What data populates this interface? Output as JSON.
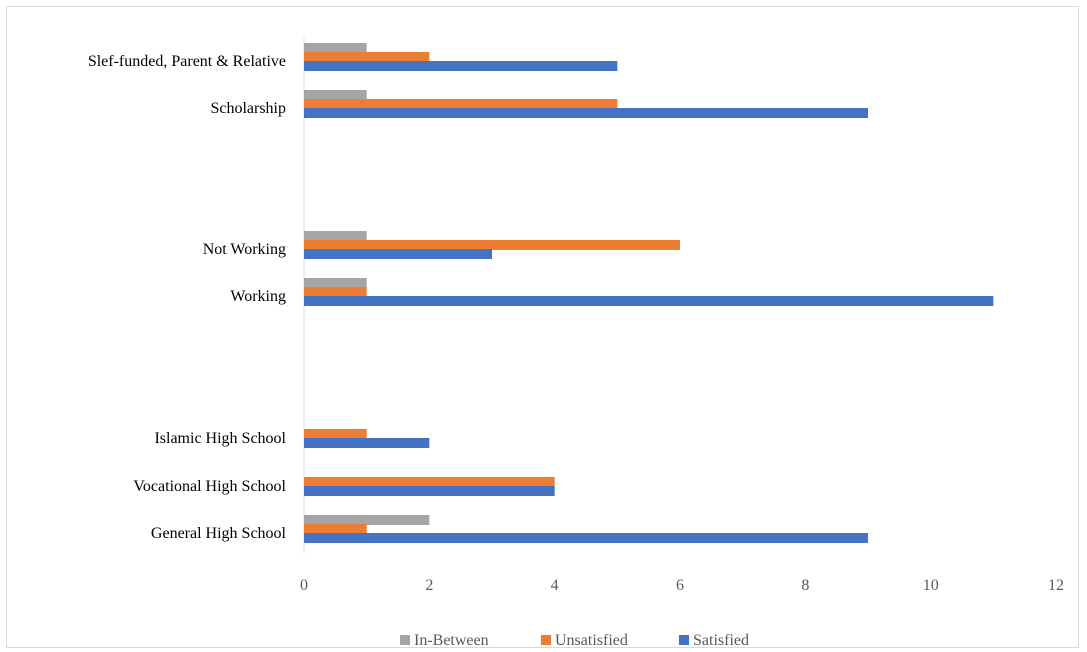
{
  "chart_data": {
    "type": "bar",
    "orientation": "horizontal",
    "title": "",
    "xlabel": "",
    "ylabel": "",
    "xlim": [
      0,
      12
    ],
    "xticks": [
      0,
      2,
      4,
      6,
      8,
      10,
      12
    ],
    "grid": false,
    "legend_position": "bottom",
    "categories": [
      "Slef-funded, Parent & Relative",
      "Scholarship",
      "Not Working",
      "Working",
      "Islamic High School ",
      "Vocational High School",
      "General High School"
    ],
    "series": [
      {
        "name": "In-Between",
        "color": "#a5a5a5",
        "values": [
          1,
          1,
          1,
          1,
          0,
          0,
          2
        ]
      },
      {
        "name": "Unsatisfied",
        "color": "#ed7d31",
        "values": [
          2,
          5,
          6,
          1,
          1,
          4,
          1
        ]
      },
      {
        "name": "Satisfied",
        "color": "#4472c4",
        "values": [
          5,
          9,
          3,
          11,
          2,
          4,
          9
        ]
      }
    ]
  }
}
